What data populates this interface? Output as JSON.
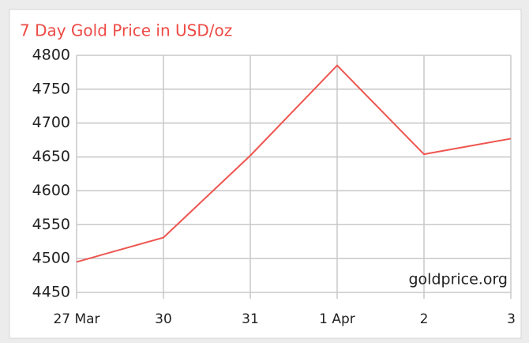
{
  "chart_data": {
    "type": "line",
    "title": "7 Day Gold Price in USD/oz",
    "categories": [
      "27 Mar",
      "30",
      "31",
      "1 Apr",
      "2",
      "3"
    ],
    "values": [
      4495,
      4531,
      4652,
      4785,
      4654,
      4677
    ],
    "color": "#ee5550",
    "ylim": [
      4450,
      4800
    ],
    "yticks": [
      4450,
      4500,
      4550,
      4600,
      4650,
      4700,
      4750,
      4800
    ],
    "grid": true,
    "annotation": "goldprice.org"
  }
}
